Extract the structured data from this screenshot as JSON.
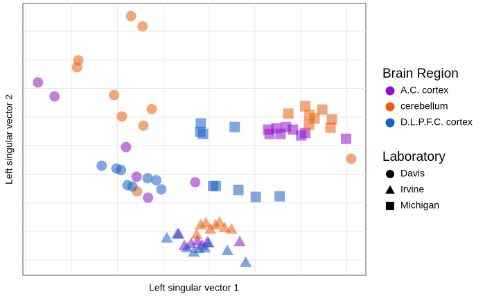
{
  "chart_data": {
    "type": "scatter",
    "x_label": "Left singular vector 1",
    "y_label": "Left singular vector 2",
    "xlim": [
      -0.06,
      7.42
    ],
    "ylim": [
      -0.53,
      8.97
    ],
    "xticks": [
      0,
      1,
      2,
      3,
      4,
      5,
      6,
      7
    ],
    "yticks": [
      0,
      1,
      2,
      3,
      4,
      5,
      6,
      7,
      8
    ],
    "grid": true,
    "color_legend_title": "Brain Region",
    "shape_legend": {
      "title": "Laboratory",
      "names": [
        "Davis",
        "Irvine",
        "Michigan"
      ],
      "shapes": [
        "circle",
        "triangle",
        "square"
      ]
    },
    "series": [
      {
        "name": "A.C. cortex",
        "color": "#9013c9",
        "groups": [
          {
            "x": [
              0.27,
              0.63,
              2.19,
              2.42,
              2.67,
              3.7
            ],
            "y": [
              6.21,
              5.72,
              3.95,
              2.91,
              2.18,
              2.72
            ]
          },
          {
            "x": [
              3.34,
              3.46,
              3.61,
              3.75,
              3.85,
              3.96,
              4.67
            ],
            "y": [
              0.92,
              0.51,
              0.58,
              0.68,
              0.53,
              0.63,
              0.65
            ]
          },
          {
            "x": [
              5.29,
              5.32,
              5.47,
              5.56,
              5.68,
              5.83,
              6.01,
              6.1,
              6.99
            ],
            "y": [
              4.56,
              4.41,
              4.61,
              4.41,
              4.65,
              4.56,
              4.36,
              4.44,
              4.24
            ]
          }
        ]
      },
      {
        "name": "cerebellum",
        "color": "#e8600f",
        "groups": [
          {
            "x": [
              2.3,
              2.55,
              1.15,
              1.12,
              1.93,
              2.75,
              2.1,
              2.57,
              2.43,
              7.1
            ],
            "y": [
              8.53,
              8.17,
              6.98,
              6.74,
              5.77,
              5.28,
              5.02,
              4.7,
              2.4,
              3.54
            ]
          },
          {
            "x": [
              3.73,
              3.82,
              3.93,
              4.03,
              4.14,
              4.23,
              4.34,
              4.49
            ],
            "y": [
              0.9,
              1.24,
              1.31,
              1.09,
              1.24,
              1.33,
              1.14,
              1.09
            ]
          },
          {
            "x": [
              5.73,
              6.1,
              6.19,
              6.18,
              6.3,
              6.47,
              6.68,
              6.65
            ],
            "y": [
              5.12,
              5.38,
              5.07,
              4.73,
              4.95,
              5.26,
              4.92,
              4.63
            ]
          }
        ]
      },
      {
        "name": "D.L.P.F.C. cortex",
        "color": "#1a5fc8",
        "groups": [
          {
            "x": [
              1.66,
              1.98,
              2.08,
              2.22,
              2.33,
              2.66,
              2.85,
              2.96
            ],
            "y": [
              3.3,
              3.2,
              3.15,
              2.62,
              2.57,
              2.86,
              2.79,
              2.47
            ]
          },
          {
            "x": [
              3.08,
              3.31,
              3.52,
              3.67,
              3.78,
              3.91,
              3.99,
              4.4,
              4.8
            ],
            "y": [
              0.78,
              0.92,
              0.44,
              0.29,
              0.41,
              0.44,
              0.61,
              0.34,
              -0.07
            ]
          },
          {
            "x": [
              3.82,
              3.81,
              3.87,
              4.56,
              4.09,
              4.15,
              4.64,
              5.02,
              5.54
            ],
            "y": [
              4.78,
              4.48,
              4.41,
              4.65,
              2.59,
              2.59,
              2.45,
              2.21,
              2.23
            ]
          }
        ]
      }
    ]
  }
}
